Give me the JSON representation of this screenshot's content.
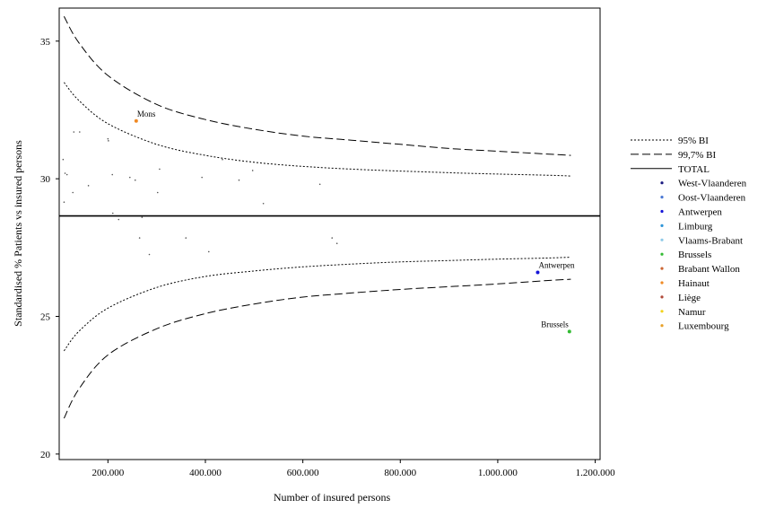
{
  "chart_data": {
    "type": "scatter",
    "subtype": "funnel-plot",
    "title": "",
    "xlabel": "Number of insured persons",
    "ylabel": "Standardised % Patients vs insured persons",
    "xlim": [
      100000,
      1210000
    ],
    "ylim": [
      19.8,
      36.2
    ],
    "x_ticks": [
      200000,
      400000,
      600000,
      800000,
      1000000,
      1200000
    ],
    "x_tick_labels": [
      "200.000",
      "400.000",
      "600.000",
      "800.000",
      "1.000.000",
      "1.200.000"
    ],
    "y_ticks": [
      20,
      25,
      30,
      35
    ],
    "y_tick_labels": [
      "20",
      "25",
      "30",
      "35"
    ],
    "grid": false,
    "legend_position": "right",
    "total": 28.65,
    "limits": {
      "x": [
        110000,
        140000,
        200000,
        300000,
        400000,
        500000,
        600000,
        700000,
        800000,
        900000,
        1000000,
        1100000,
        1150000
      ],
      "ci95_upper": [
        33.5,
        32.85,
        32.0,
        31.25,
        30.85,
        30.6,
        30.45,
        30.35,
        30.28,
        30.22,
        30.17,
        30.13,
        30.1
      ],
      "ci95_lower": [
        23.75,
        24.45,
        25.3,
        26.05,
        26.45,
        26.65,
        26.8,
        26.9,
        26.98,
        27.03,
        27.08,
        27.12,
        27.15
      ],
      "ci997_upper": [
        35.9,
        34.95,
        33.75,
        32.7,
        32.15,
        31.8,
        31.55,
        31.4,
        31.25,
        31.1,
        31.0,
        30.9,
        30.85
      ],
      "ci997_lower": [
        21.3,
        22.35,
        23.6,
        24.55,
        25.1,
        25.45,
        25.7,
        25.85,
        25.98,
        26.08,
        26.18,
        26.3,
        26.35
      ]
    },
    "legend": [
      {
        "label": "95% BI",
        "kind": "line",
        "dash": "2,2"
      },
      {
        "label": "99,7% BI",
        "kind": "line",
        "dash": "9,4"
      },
      {
        "label": "TOTAL",
        "kind": "line",
        "dash": ""
      },
      {
        "label": "West-Vlaanderen",
        "kind": "dot",
        "color": "#1a1a80"
      },
      {
        "label": "Oost-Vlaanderen",
        "kind": "dot",
        "color": "#4a78d4"
      },
      {
        "label": "Antwerpen",
        "kind": "dot",
        "color": "#1515d8"
      },
      {
        "label": "Limburg",
        "kind": "dot",
        "color": "#2f96d8"
      },
      {
        "label": "Vlaams-Brabant",
        "kind": "dot",
        "color": "#8ecae8"
      },
      {
        "label": "Brussels",
        "kind": "dot",
        "color": "#33bb33"
      },
      {
        "label": "Brabant Wallon",
        "kind": "dot",
        "color": "#cc6633"
      },
      {
        "label": "Hainaut",
        "kind": "dot",
        "color": "#f08a24"
      },
      {
        "label": "Liège",
        "kind": "dot",
        "color": "#b04a3a"
      },
      {
        "label": "Namur",
        "kind": "dot",
        "color": "#f2d21b"
      },
      {
        "label": "Luxembourg",
        "kind": "dot",
        "color": "#e8a02a"
      }
    ],
    "points": [
      {
        "x": 108000,
        "y": 30.7,
        "color": "#555555"
      },
      {
        "x": 112000,
        "y": 30.2,
        "color": "#555555"
      },
      {
        "x": 116000,
        "y": 30.15,
        "color": "#555555"
      },
      {
        "x": 110000,
        "y": 29.15,
        "color": "#555555"
      },
      {
        "x": 130000,
        "y": 31.7,
        "color": "#555555"
      },
      {
        "x": 142000,
        "y": 31.7,
        "color": "#555555"
      },
      {
        "x": 128000,
        "y": 29.5,
        "color": "#555555"
      },
      {
        "x": 160000,
        "y": 29.75,
        "color": "#555555"
      },
      {
        "x": 200000,
        "y": 31.45,
        "color": "#555555"
      },
      {
        "x": 201000,
        "y": 31.38,
        "color": "#555555"
      },
      {
        "x": 209000,
        "y": 30.15,
        "color": "#555555"
      },
      {
        "x": 210000,
        "y": 28.75,
        "color": "#555555"
      },
      {
        "x": 222000,
        "y": 28.52,
        "color": "#555555"
      },
      {
        "x": 245000,
        "y": 30.05,
        "color": "#555555"
      },
      {
        "x": 256000,
        "y": 29.95,
        "color": "#555555"
      },
      {
        "x": 258000,
        "y": 32.1,
        "color": "#f08a24"
      },
      {
        "x": 265000,
        "y": 27.85,
        "color": "#555555"
      },
      {
        "x": 270000,
        "y": 28.6,
        "color": "#555555"
      },
      {
        "x": 285000,
        "y": 27.25,
        "color": "#555555"
      },
      {
        "x": 302000,
        "y": 29.5,
        "color": "#555555"
      },
      {
        "x": 306000,
        "y": 30.35,
        "color": "#555555"
      },
      {
        "x": 360000,
        "y": 27.85,
        "color": "#555555"
      },
      {
        "x": 393000,
        "y": 30.05,
        "color": "#555555"
      },
      {
        "x": 407000,
        "y": 27.35,
        "color": "#555555"
      },
      {
        "x": 435000,
        "y": 30.7,
        "color": "#555555"
      },
      {
        "x": 469000,
        "y": 29.95,
        "color": "#555555"
      },
      {
        "x": 497000,
        "y": 30.3,
        "color": "#555555"
      },
      {
        "x": 519000,
        "y": 29.1,
        "color": "#555555"
      },
      {
        "x": 635000,
        "y": 29.8,
        "color": "#555555"
      },
      {
        "x": 660000,
        "y": 27.85,
        "color": "#555555"
      },
      {
        "x": 670000,
        "y": 27.65,
        "color": "#555555"
      },
      {
        "x": 1082000,
        "y": 26.6,
        "color": "#1515d8"
      },
      {
        "x": 1147000,
        "y": 24.45,
        "color": "#33bb33"
      }
    ],
    "annotations": [
      {
        "text": "Mons",
        "x": 258000,
        "y": 32.1,
        "anchor": "start"
      },
      {
        "text": "Antwerpen",
        "x": 1082000,
        "y": 26.6,
        "anchor": "start"
      },
      {
        "text": "Brussels",
        "x": 1147000,
        "y": 24.45,
        "anchor": "end"
      }
    ]
  }
}
